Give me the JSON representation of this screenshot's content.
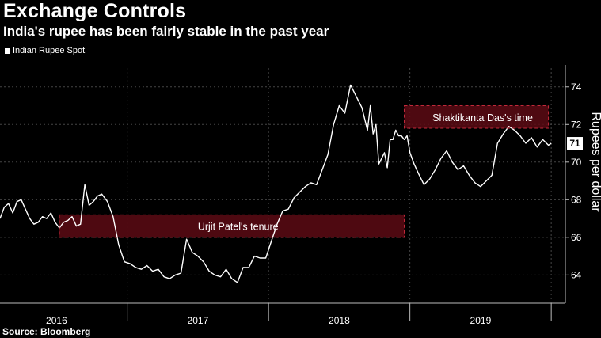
{
  "header": {
    "title": "Exchange Controls",
    "subtitle": "India's rupee has been fairly stable in the past year"
  },
  "legend": {
    "label": "Indian Rupee Spot"
  },
  "footer": {
    "source": "Source: Bloomberg"
  },
  "colors": {
    "background": "#000000",
    "line": "#ffffff",
    "band_fill": "#5c0a14",
    "band_border": "#c2293a",
    "grid": "#444444"
  },
  "chart_data": {
    "type": "line",
    "title": "Exchange Controls",
    "subtitle": "India's rupee has been fairly stable in the past year",
    "xlabel": "",
    "ylabel": "Rupees per dollar",
    "xlim": [
      2015.6,
      2019.6
    ],
    "ylim": [
      62.5,
      75
    ],
    "y_ticks": [
      64,
      66,
      68,
      70,
      72,
      74
    ],
    "year_labels": [
      {
        "label": "2016",
        "x": 2016.0
      },
      {
        "label": "2017",
        "x": 2017.0
      },
      {
        "label": "2018",
        "x": 2018.0
      },
      {
        "label": "2019",
        "x": 2019.0
      }
    ],
    "year_dividers": [
      2016.5,
      2017.5,
      2018.5,
      2019.5
    ],
    "grid": true,
    "legend_position": "top-left",
    "current_value": 71,
    "current_label": "71",
    "series": [
      {
        "name": "Indian Rupee Spot",
        "x": [
          2015.6,
          2015.63,
          2015.66,
          2015.69,
          2015.72,
          2015.75,
          2015.78,
          2015.81,
          2015.84,
          2015.87,
          2015.9,
          2015.93,
          2015.96,
          2015.99,
          2016.02,
          2016.05,
          2016.08,
          2016.11,
          2016.14,
          2016.17,
          2016.2,
          2016.23,
          2016.26,
          2016.29,
          2016.32,
          2016.36,
          2016.4,
          2016.44,
          2016.48,
          2016.52,
          2016.56,
          2016.6,
          2016.64,
          2016.68,
          2016.72,
          2016.76,
          2016.8,
          2016.84,
          2016.88,
          2016.92,
          2016.96,
          2017.0,
          2017.04,
          2017.08,
          2017.12,
          2017.16,
          2017.2,
          2017.24,
          2017.28,
          2017.32,
          2017.36,
          2017.4,
          2017.44,
          2017.48,
          2017.52,
          2017.56,
          2017.6,
          2017.64,
          2017.68,
          2017.72,
          2017.76,
          2017.8,
          2017.84,
          2017.88,
          2017.92,
          2017.96,
          2018.0,
          2018.04,
          2018.08,
          2018.12,
          2018.16,
          2018.2,
          2018.22,
          2018.24,
          2018.26,
          2018.28,
          2018.3,
          2018.32,
          2018.34,
          2018.36,
          2018.38,
          2018.4,
          2018.42,
          2018.44,
          2018.46,
          2018.48,
          2018.5,
          2018.53,
          2018.56,
          2018.6,
          2018.64,
          2018.68,
          2018.72,
          2018.76,
          2018.8,
          2018.84,
          2018.88,
          2018.92,
          2018.96,
          2019.0,
          2019.04,
          2019.08,
          2019.12,
          2019.16,
          2019.2,
          2019.24,
          2019.28,
          2019.32,
          2019.36,
          2019.4,
          2019.44,
          2019.48,
          2019.5
        ],
        "values": [
          67.0,
          67.6,
          67.8,
          67.3,
          67.9,
          68.0,
          67.5,
          67.0,
          66.7,
          66.8,
          67.1,
          67.0,
          67.3,
          66.8,
          66.5,
          66.8,
          66.9,
          67.1,
          66.6,
          66.7,
          68.8,
          67.7,
          67.9,
          68.2,
          68.3,
          67.9,
          67.1,
          65.6,
          64.7,
          64.6,
          64.4,
          64.3,
          64.5,
          64.2,
          64.3,
          63.9,
          63.8,
          64.0,
          64.1,
          65.9,
          65.2,
          65.0,
          64.7,
          64.2,
          64.0,
          63.9,
          64.3,
          63.8,
          63.6,
          64.4,
          64.4,
          65.0,
          64.9,
          64.9,
          65.8,
          66.7,
          67.4,
          67.5,
          68.1,
          68.4,
          68.7,
          68.9,
          68.8,
          69.6,
          70.4,
          72.0,
          73.0,
          72.6,
          74.1,
          73.5,
          72.9,
          71.7,
          73.0,
          71.5,
          72.0,
          69.9,
          70.2,
          70.5,
          69.7,
          71.2,
          71.2,
          71.7,
          71.4,
          71.4,
          71.2,
          71.4,
          70.5,
          69.9,
          69.4,
          68.8,
          69.1,
          69.6,
          70.2,
          70.6,
          70.0,
          69.6,
          69.8,
          69.3,
          68.9,
          68.7,
          69.0,
          69.3,
          71.0,
          71.5,
          71.9,
          71.7,
          71.4,
          71.0,
          71.3,
          70.8,
          71.2,
          70.9,
          71.0
        ]
      }
    ],
    "annotations": [
      {
        "label": "Urjit Patel's tenure",
        "x_start": 2016.02,
        "x_end": 2018.46,
        "y_low": 66.0,
        "y_high": 67.2
      },
      {
        "label": "Shaktikanta Das's time",
        "x_start": 2018.46,
        "x_end": 2019.48,
        "y_low": 71.8,
        "y_high": 73.0
      }
    ]
  }
}
